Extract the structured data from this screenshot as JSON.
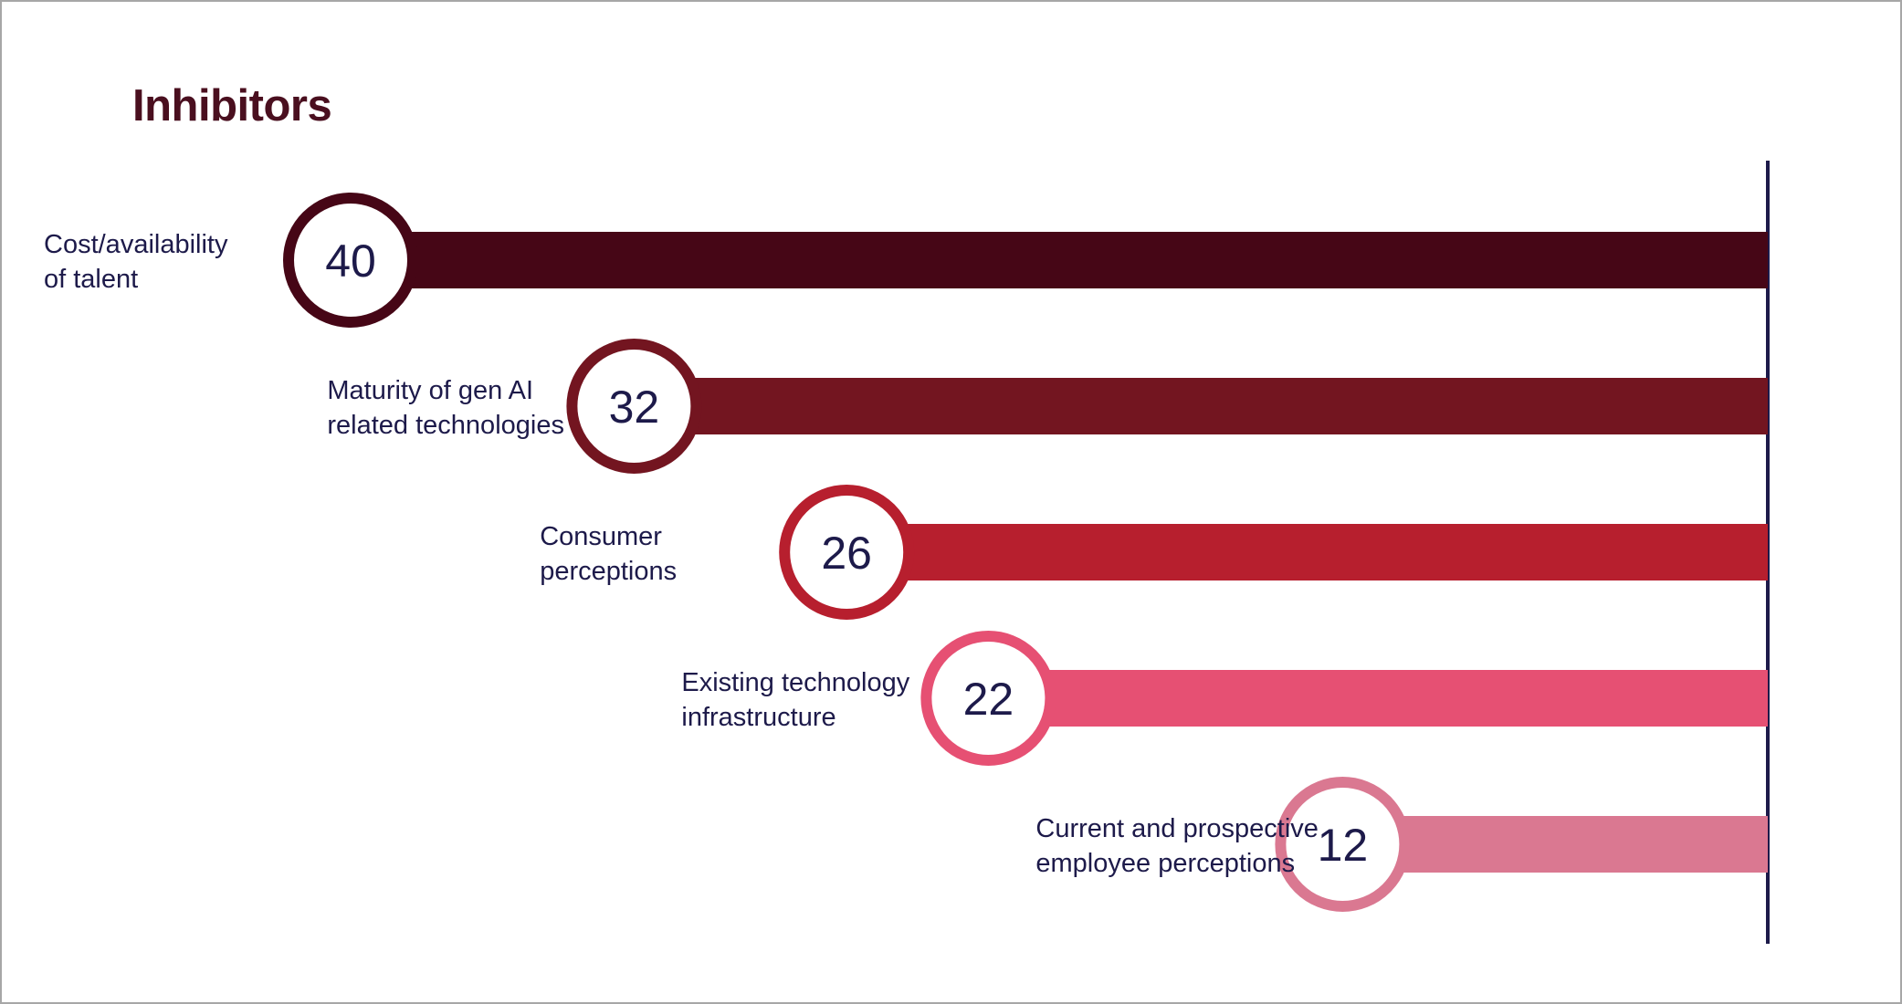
{
  "chart_data": {
    "type": "bar",
    "orientation": "horizontal",
    "title": "Inhibitors",
    "categories": [
      "Cost/availability of talent",
      "Maturity of gen AI related technologies",
      "Consumer perceptions",
      "Existing technology infrastructure",
      "Current and prospective employee perceptions"
    ],
    "label_lines": [
      [
        "Cost/availability",
        "of talent"
      ],
      [
        "Maturity of gen AI",
        "related technologies"
      ],
      [
        "Consumer",
        "perceptions"
      ],
      [
        "Existing technology",
        "infrastructure"
      ],
      [
        "Current and prospective",
        "employee perceptions"
      ]
    ],
    "values": [
      40,
      32,
      26,
      22,
      12
    ],
    "colors": [
      "#460616",
      "#731520",
      "#b71f2e",
      "#e65073",
      "#da7891"
    ],
    "axis_color": "#1d1a4a",
    "text_color": "#1d1a4a",
    "grid": false,
    "legend": "none"
  }
}
